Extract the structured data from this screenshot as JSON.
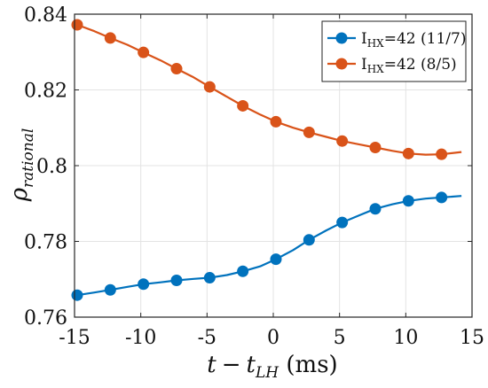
{
  "chart_data": {
    "type": "line",
    "xlabel_parts": {
      "t": "t",
      "minus": "−",
      "t2": "t",
      "sub": "LH",
      "unit": " (ms)"
    },
    "ylabel_parts": {
      "rho": "ρ",
      "sub": "rational"
    },
    "xlim": [
      -15,
      15
    ],
    "ylim": [
      0.76,
      0.84
    ],
    "xticks": [
      -15,
      -10,
      -5,
      0,
      5,
      10,
      15
    ],
    "yticks": [
      0.76,
      0.78,
      0.8,
      0.82,
      0.84
    ],
    "xtick_labels": [
      "-15",
      "-10",
      "-5",
      "0",
      "5",
      "10",
      "15"
    ],
    "ytick_labels": [
      "0.76",
      "0.78",
      "0.8",
      "0.82",
      "0.84"
    ],
    "grid": true,
    "legend_position": "top-right",
    "series": [
      {
        "name": "I_HX=42 (11/7)",
        "label_main": "I",
        "label_sub": "HX",
        "label_rest": "=42 (11/7)",
        "color": "#0072BD",
        "x": [
          -14.8,
          -12.3,
          -9.8,
          -7.3,
          -4.8,
          -2.3,
          0.2,
          2.7,
          5.2,
          7.7,
          10.2,
          12.7
        ],
        "y": [
          0.7658,
          0.7672,
          0.7687,
          0.7697,
          0.7704,
          0.7721,
          0.7753,
          0.7804,
          0.785,
          0.7886,
          0.7907,
          0.7916
        ],
        "line_x": [
          -14.8,
          -13.5,
          -12.3,
          -11,
          -9.8,
          -8.5,
          -7.3,
          -6,
          -4.8,
          -3.5,
          -2.3,
          -1,
          0.2,
          1.5,
          2.7,
          4,
          5.2,
          6.5,
          7.7,
          9,
          10.2,
          11.5,
          12.7,
          14.2
        ],
        "line_y": [
          0.7658,
          0.7665,
          0.7672,
          0.768,
          0.7687,
          0.7692,
          0.7697,
          0.7701,
          0.7704,
          0.7711,
          0.7721,
          0.7734,
          0.7753,
          0.7777,
          0.7804,
          0.7829,
          0.785,
          0.7869,
          0.7886,
          0.7898,
          0.7907,
          0.7913,
          0.7916,
          0.792
        ]
      },
      {
        "name": "I_HX=42 (8/5)",
        "label_main": "I",
        "label_sub": "HX",
        "label_rest": "=42 (8/5)",
        "color": "#D95319",
        "x": [
          -14.8,
          -12.3,
          -9.8,
          -7.3,
          -4.8,
          -2.3,
          0.2,
          2.7,
          5.2,
          7.7,
          10.2,
          12.7
        ],
        "y": [
          0.8372,
          0.8337,
          0.8299,
          0.8256,
          0.8208,
          0.8158,
          0.8116,
          0.8088,
          0.8065,
          0.8048,
          0.8032,
          0.803
        ],
        "line_x": [
          -14.8,
          -13.5,
          -12.3,
          -11,
          -9.8,
          -8.5,
          -7.3,
          -6,
          -4.8,
          -3.5,
          -2.3,
          -1,
          0.2,
          1.5,
          2.7,
          4,
          5.2,
          6.5,
          7.7,
          9,
          10.2,
          11.5,
          12.7,
          14.2
        ],
        "line_y": [
          0.8372,
          0.8355,
          0.8337,
          0.8319,
          0.8299,
          0.8278,
          0.8256,
          0.8233,
          0.8208,
          0.8182,
          0.8158,
          0.8135,
          0.8116,
          0.81,
          0.8088,
          0.8076,
          0.8065,
          0.8056,
          0.8048,
          0.8039,
          0.8032,
          0.8029,
          0.803,
          0.8036
        ]
      }
    ]
  }
}
